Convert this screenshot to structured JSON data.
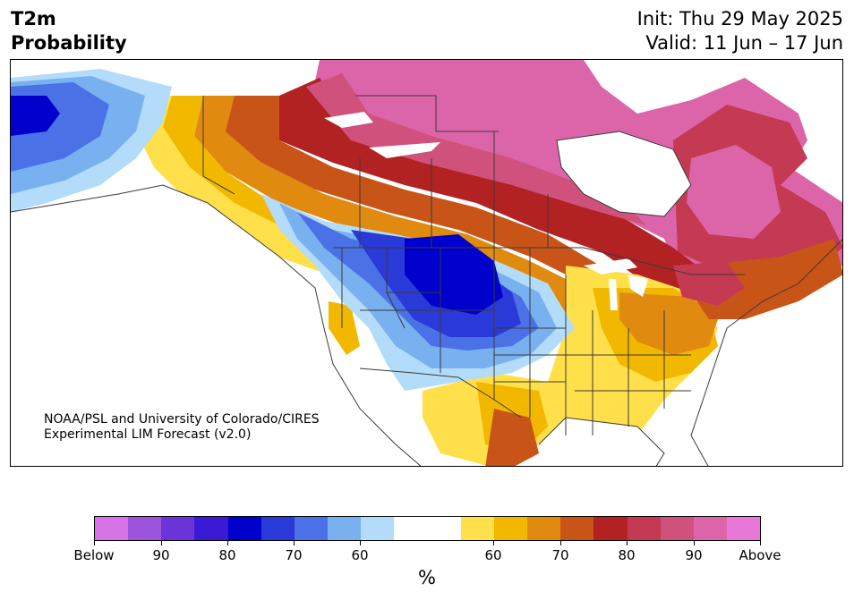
{
  "title": {
    "line1": "T2m",
    "line2": "Probability",
    "init": "Init: Thu 29 May 2025",
    "valid": "Valid: 11 Jun – 17 Jun"
  },
  "credit": {
    "line1": "NOAA/PSL and University of Colorado/CIRES",
    "line2": "Experimental LIM Forecast (v2.0)"
  },
  "colorbar": {
    "colors": [
      "#d873e6",
      "#9c54dc",
      "#6a34d8",
      "#3a1ad4",
      "#0000cc",
      "#2a3ad8",
      "#4a72e6",
      "#78b0f0",
      "#b2dcfa",
      "#ffffff",
      "#ffffff",
      "#ffe04a",
      "#f2b800",
      "#e08a10",
      "#c85418",
      "#b22222",
      "#c43a52",
      "#d0527c",
      "#dc64a8",
      "#e878d8"
    ],
    "tick_labels": [
      "Below",
      "90",
      "80",
      "70",
      "60",
      "60",
      "70",
      "80",
      "90",
      "Above"
    ],
    "units": "%"
  },
  "map": {
    "palette": {
      "water": "#ffffff",
      "border": "#3a3a3a",
      "below_strong": "#0000cc",
      "below_mid": "#2a3ad8",
      "below_light": "#4a72e6",
      "below_pale": "#78b0f0",
      "below_faint": "#b2dcfa",
      "above_faint": "#ffe04a",
      "above_pale": "#f2b800",
      "above_light": "#e08a10",
      "above_mid": "#c85418",
      "above_strong": "#b22222",
      "above_deep": "#c43a52",
      "above_rose": "#d0527c",
      "above_pink": "#dc64a8"
    }
  }
}
